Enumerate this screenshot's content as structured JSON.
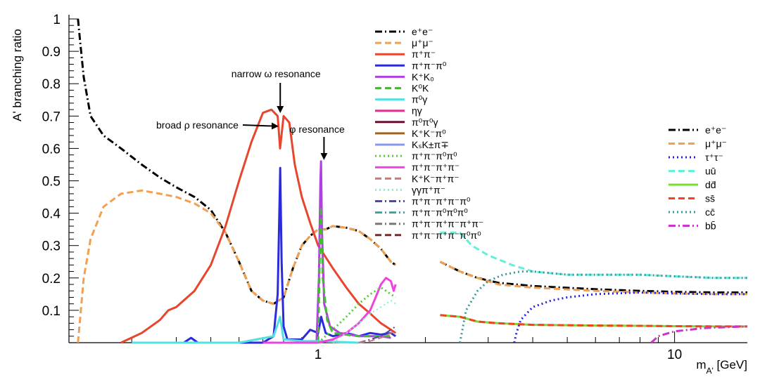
{
  "chart_data": {
    "type": "line",
    "title": "",
    "xlabel": "m_{A'} [GeV]",
    "ylabel": "A' branching ratio",
    "xscale": "log",
    "xlim": [
      0.2,
      16
    ],
    "ylim": [
      0,
      1
    ],
    "grid": false,
    "x_tick_labels": [
      {
        "x": 1,
        "label": "1"
      },
      {
        "x": 10,
        "label": "10"
      }
    ],
    "y_tick_labels": [
      "0.1",
      "0.2",
      "0.3",
      "0.4",
      "0.5",
      "0.6",
      "0.7",
      "0.8",
      "0.9",
      "1"
    ],
    "annotations": [
      {
        "text": "narrow ω resonance",
        "x": 0.783,
        "y": 0.705
      },
      {
        "text": "broad ρ resonance",
        "x": 0.775,
        "y": 0.66
      },
      {
        "text": "φ resonance",
        "x": 1.02,
        "y": 0.56
      }
    ],
    "legend_left": {
      "placement": "top-center",
      "entries": [
        {
          "name": "e⁺e⁻",
          "color": "#000000",
          "dash": "dashdot"
        },
        {
          "name": "μ⁺μ⁻",
          "color": "#f0a050",
          "dash": "dash"
        },
        {
          "name": "π⁺π⁻",
          "color": "#e8452c",
          "dash": "solid"
        },
        {
          "name": "π⁺π⁻π⁰",
          "color": "#2b2bdd",
          "dash": "solid"
        },
        {
          "name": "K⁺K₀",
          "color": "#b040e0",
          "dash": "solid"
        },
        {
          "name": "K⁰K",
          "color": "#44bb33",
          "dash": "dash"
        },
        {
          "name": "π⁰γ",
          "color": "#55e0e0",
          "dash": "solid"
        },
        {
          "name": "ηγ",
          "color": "#dd3388",
          "dash": "solid"
        },
        {
          "name": "π⁰π⁰γ",
          "color": "#661133",
          "dash": "solid"
        },
        {
          "name": "K⁺K⁻π⁰",
          "color": "#9a6620",
          "dash": "solid"
        },
        {
          "name": "KₛK±π∓",
          "color": "#8899ee",
          "dash": "solid"
        },
        {
          "name": "π⁺π⁻π⁰π⁰",
          "color": "#55cc33",
          "dash": "dot"
        },
        {
          "name": "π⁺π⁻π⁺π⁻",
          "color": "#ee44dd",
          "dash": "solid"
        },
        {
          "name": "K⁺K⁻π⁺π⁻",
          "color": "#cc7777",
          "dash": "dash"
        },
        {
          "name": "γγπ⁺π⁻",
          "color": "#88eecc",
          "dash": "dot"
        },
        {
          "name": "π⁺π⁻π⁺π⁻π⁰",
          "color": "#5544aa",
          "dash": "dashdot"
        },
        {
          "name": "π⁺π⁻π⁰π⁰π⁰",
          "color": "#33aa99",
          "dash": "dashdot"
        },
        {
          "name": "π⁺π⁻π⁺π⁻π⁺π⁻",
          "color": "#777777",
          "dash": "dashdot"
        },
        {
          "name": "π⁺π⁻π⁺π⁻π⁰π⁰",
          "color": "#882222",
          "dash": "dash"
        }
      ]
    },
    "legend_right": {
      "placement": "right",
      "entries": [
        {
          "name": "e⁺e⁻",
          "color": "#000000",
          "dash": "dashdot"
        },
        {
          "name": "μ⁺μ⁻",
          "color": "#f0a050",
          "dash": "dash"
        },
        {
          "name": "τ⁺τ⁻",
          "color": "#2222ee",
          "dash": "dot"
        },
        {
          "name": "uū",
          "color": "#66eedd",
          "dash": "dash"
        },
        {
          "name": "dd̄",
          "color": "#77dd33",
          "dash": "solid"
        },
        {
          "name": "ss̄",
          "color": "#ee4422",
          "dash": "dash"
        },
        {
          "name": "cc̄",
          "color": "#339999",
          "dash": "dot"
        },
        {
          "name": "bb̄",
          "color": "#cc33cc",
          "dash": "dashdot"
        }
      ]
    },
    "series": [
      {
        "name": "e⁺e⁻",
        "color": "#000000",
        "dash": "dashdot",
        "width": 3,
        "x": [
          0.212,
          0.215,
          0.22,
          0.23,
          0.25,
          0.28,
          0.32,
          0.36,
          0.4,
          0.45,
          0.5,
          0.55,
          0.6,
          0.65,
          0.7,
          0.75,
          0.8,
          0.85,
          0.9,
          0.95,
          1.0,
          1.05,
          1.1,
          1.2,
          1.3,
          1.4,
          1.5,
          1.6,
          1.65
        ],
        "y": [
          1.0,
          0.93,
          0.82,
          0.7,
          0.64,
          0.6,
          0.55,
          0.51,
          0.48,
          0.45,
          0.41,
          0.34,
          0.25,
          0.16,
          0.13,
          0.12,
          0.14,
          0.23,
          0.3,
          0.33,
          0.35,
          0.35,
          0.36,
          0.355,
          0.345,
          0.32,
          0.29,
          0.25,
          0.24
        ]
      },
      {
        "name": "e⁺e⁻",
        "color": "#000000",
        "dash": "dashdot",
        "width": 3,
        "x": [
          2.2,
          2.5,
          2.8,
          3.2,
          4.0,
          6.0,
          8.0,
          10.0,
          13.0,
          16.0
        ],
        "y": [
          0.25,
          0.22,
          0.2,
          0.185,
          0.175,
          0.165,
          0.16,
          0.157,
          0.155,
          0.155
        ]
      },
      {
        "name": "μ⁺μ⁻",
        "color": "#f0a050",
        "dash": "dash",
        "width": 3,
        "x": [
          0.212,
          0.22,
          0.23,
          0.25,
          0.28,
          0.32,
          0.36,
          0.4,
          0.45,
          0.5,
          0.55,
          0.6,
          0.65,
          0.7,
          0.75,
          0.8,
          0.85,
          0.9,
          0.95,
          1.0,
          1.05,
          1.1,
          1.2,
          1.3,
          1.4,
          1.5,
          1.6,
          1.65
        ],
        "y": [
          0.0,
          0.2,
          0.32,
          0.42,
          0.46,
          0.47,
          0.46,
          0.45,
          0.43,
          0.4,
          0.34,
          0.25,
          0.16,
          0.13,
          0.12,
          0.14,
          0.23,
          0.3,
          0.33,
          0.35,
          0.35,
          0.36,
          0.355,
          0.345,
          0.32,
          0.29,
          0.25,
          0.24
        ]
      },
      {
        "name": "μ⁺μ⁻",
        "color": "#f0a050",
        "dash": "dash",
        "width": 3,
        "x": [
          2.2,
          2.5,
          2.8,
          3.2,
          4.0,
          6.0,
          8.0,
          10.0,
          13.0,
          16.0
        ],
        "y": [
          0.25,
          0.22,
          0.2,
          0.18,
          0.17,
          0.16,
          0.155,
          0.152,
          0.15,
          0.15
        ]
      },
      {
        "name": "π⁺π⁻",
        "color": "#e8452c",
        "dash": "solid",
        "width": 3,
        "x": [
          0.28,
          0.32,
          0.36,
          0.38,
          0.4,
          0.45,
          0.5,
          0.55,
          0.6,
          0.65,
          0.7,
          0.74,
          0.77,
          0.782,
          0.8,
          0.83,
          0.86,
          0.9,
          0.95,
          1.0,
          1.1,
          1.2,
          1.3,
          1.4,
          1.5,
          1.6,
          1.65
        ],
        "y": [
          0.0,
          0.03,
          0.07,
          0.1,
          0.11,
          0.16,
          0.24,
          0.36,
          0.5,
          0.62,
          0.71,
          0.72,
          0.7,
          0.6,
          0.7,
          0.68,
          0.55,
          0.45,
          0.37,
          0.3,
          0.23,
          0.17,
          0.12,
          0.09,
          0.06,
          0.04,
          0.03
        ]
      },
      {
        "name": "π⁺π⁻π⁰",
        "color": "#2b2bdd",
        "dash": "solid",
        "width": 3,
        "x": [
          0.42,
          0.44,
          0.46,
          0.5,
          0.6,
          0.7,
          0.75,
          0.77,
          0.78,
          0.783,
          0.79,
          0.8,
          0.82,
          0.9,
          0.95,
          1.0,
          1.02,
          1.05,
          1.1,
          1.2,
          1.3,
          1.4,
          1.5,
          1.6,
          1.65
        ],
        "y": [
          0.0,
          0.015,
          0.0,
          0.0,
          0.0,
          0.0,
          0.02,
          0.15,
          0.45,
          0.54,
          0.25,
          0.05,
          0.01,
          0.01,
          0.04,
          0.03,
          0.08,
          0.03,
          0.02,
          0.03,
          0.02,
          0.03,
          0.025,
          0.03,
          0.02
        ]
      },
      {
        "name": "K⁺K₀",
        "color": "#b040e0",
        "dash": "solid",
        "width": 3,
        "x": [
          0.99,
          1.005,
          1.015,
          1.019,
          1.025,
          1.04,
          1.08,
          1.15,
          1.3,
          1.5,
          1.6
        ],
        "y": [
          0.0,
          0.2,
          0.5,
          0.56,
          0.35,
          0.12,
          0.05,
          0.03,
          0.02,
          0.02,
          0.015
        ]
      },
      {
        "name": "K⁰K",
        "color": "#44bb33",
        "dash": "dash",
        "width": 3,
        "x": [
          1.0,
          1.01,
          1.019,
          1.03,
          1.06,
          1.1,
          1.3,
          1.6
        ],
        "y": [
          0.0,
          0.25,
          0.42,
          0.2,
          0.07,
          0.03,
          0.02,
          0.02
        ]
      },
      {
        "name": "π⁰γ",
        "color": "#55e0e0",
        "dash": "solid",
        "width": 3,
        "x": [
          0.3,
          0.4,
          0.6,
          0.75,
          0.782,
          0.8,
          0.9,
          1.0,
          1.3
        ],
        "y": [
          0.0,
          0.0,
          0.0,
          0.02,
          0.08,
          0.01,
          0.005,
          0.005,
          0.0
        ]
      },
      {
        "name": "π⁺π⁻π⁺π⁻",
        "color": "#ee44dd",
        "dash": "solid",
        "width": 3,
        "x": [
          0.7,
          0.8,
          0.9,
          1.0,
          1.1,
          1.2,
          1.3,
          1.4,
          1.45,
          1.5,
          1.55,
          1.6,
          1.63,
          1.65
        ],
        "y": [
          0.0,
          0.0,
          0.0,
          0.0,
          0.01,
          0.03,
          0.06,
          0.1,
          0.14,
          0.18,
          0.2,
          0.19,
          0.16,
          0.18
        ]
      },
      {
        "name": "π⁺π⁻π⁰π⁰",
        "color": "#55cc33",
        "dash": "dot",
        "width": 3,
        "x": [
          1.0,
          1.1,
          1.2,
          1.3,
          1.4,
          1.5,
          1.55,
          1.6,
          1.65
        ],
        "y": [
          0.0,
          0.04,
          0.08,
          0.12,
          0.15,
          0.17,
          0.16,
          0.15,
          0.14
        ]
      },
      {
        "name": "γγπ⁺π⁻",
        "color": "#88eecc",
        "dash": "dot",
        "width": 2,
        "x": [
          1.1,
          1.2,
          1.3,
          1.4,
          1.5,
          1.6,
          1.65
        ],
        "y": [
          0.0,
          0.03,
          0.06,
          0.09,
          0.11,
          0.13,
          0.12
        ]
      },
      {
        "name": "π⁺π⁻π⁺π⁻π⁰",
        "color": "#5544aa",
        "dash": "dashdot",
        "width": 2,
        "x": [
          1.3,
          1.4,
          1.5,
          1.6,
          1.65
        ],
        "y": [
          0.0,
          0.01,
          0.02,
          0.04,
          0.05
        ]
      },
      {
        "name": "K⁺K⁻π⁺π⁻",
        "color": "#cc7777",
        "dash": "dash",
        "width": 2,
        "x": [
          1.3,
          1.4,
          1.5,
          1.6,
          1.65
        ],
        "y": [
          0.0,
          0.005,
          0.015,
          0.03,
          0.04
        ]
      },
      {
        "name": "uū",
        "color": "#66eedd",
        "dash": "dash",
        "width": 3,
        "x": [
          2.2,
          2.5,
          2.7,
          3.0,
          3.5,
          4.0,
          5.0,
          6.0,
          8.0,
          10.0,
          13.0,
          16.0
        ],
        "y": [
          0.34,
          0.34,
          0.3,
          0.27,
          0.24,
          0.22,
          0.21,
          0.21,
          0.21,
          0.205,
          0.2,
          0.2
        ]
      },
      {
        "name": "dd̄",
        "color": "#77dd33",
        "dash": "solid",
        "width": 3,
        "x": [
          2.2,
          2.5,
          2.8,
          3.2,
          4.0,
          6.0,
          8.0,
          10.0,
          13.0,
          16.0
        ],
        "y": [
          0.085,
          0.08,
          0.065,
          0.06,
          0.055,
          0.053,
          0.052,
          0.051,
          0.05,
          0.05
        ]
      },
      {
        "name": "ss̄",
        "color": "#ee4422",
        "dash": "dash",
        "width": 3,
        "x": [
          2.2,
          2.5,
          2.8,
          3.2,
          4.0,
          6.0,
          8.0,
          10.0,
          13.0,
          16.0
        ],
        "y": [
          0.085,
          0.08,
          0.065,
          0.06,
          0.055,
          0.053,
          0.052,
          0.051,
          0.05,
          0.05
        ]
      },
      {
        "name": "cc̄",
        "color": "#339999",
        "dash": "dot",
        "width": 3,
        "x": [
          2.5,
          2.6,
          2.8,
          3.0,
          3.3,
          3.7,
          4.0,
          5.0,
          6.0,
          8.0,
          10.0,
          13.0,
          16.0
        ],
        "y": [
          0.0,
          0.1,
          0.16,
          0.19,
          0.21,
          0.22,
          0.22,
          0.21,
          0.21,
          0.21,
          0.205,
          0.2,
          0.2
        ]
      },
      {
        "name": "τ⁺τ⁻",
        "color": "#2222ee",
        "dash": "dot",
        "width": 3,
        "x": [
          3.55,
          3.6,
          3.7,
          4.0,
          4.5,
          5.0,
          6.0,
          8.0,
          10.0,
          13.0,
          16.0
        ],
        "y": [
          0.0,
          0.03,
          0.07,
          0.11,
          0.13,
          0.14,
          0.15,
          0.155,
          0.152,
          0.15,
          0.15
        ]
      },
      {
        "name": "bb̄",
        "color": "#cc33cc",
        "dash": "dashdot",
        "width": 3,
        "x": [
          8.6,
          9.0,
          10.0,
          11.0,
          12.0,
          14.0,
          16.0
        ],
        "y": [
          0.0,
          0.02,
          0.035,
          0.04,
          0.045,
          0.048,
          0.05
        ]
      }
    ]
  }
}
